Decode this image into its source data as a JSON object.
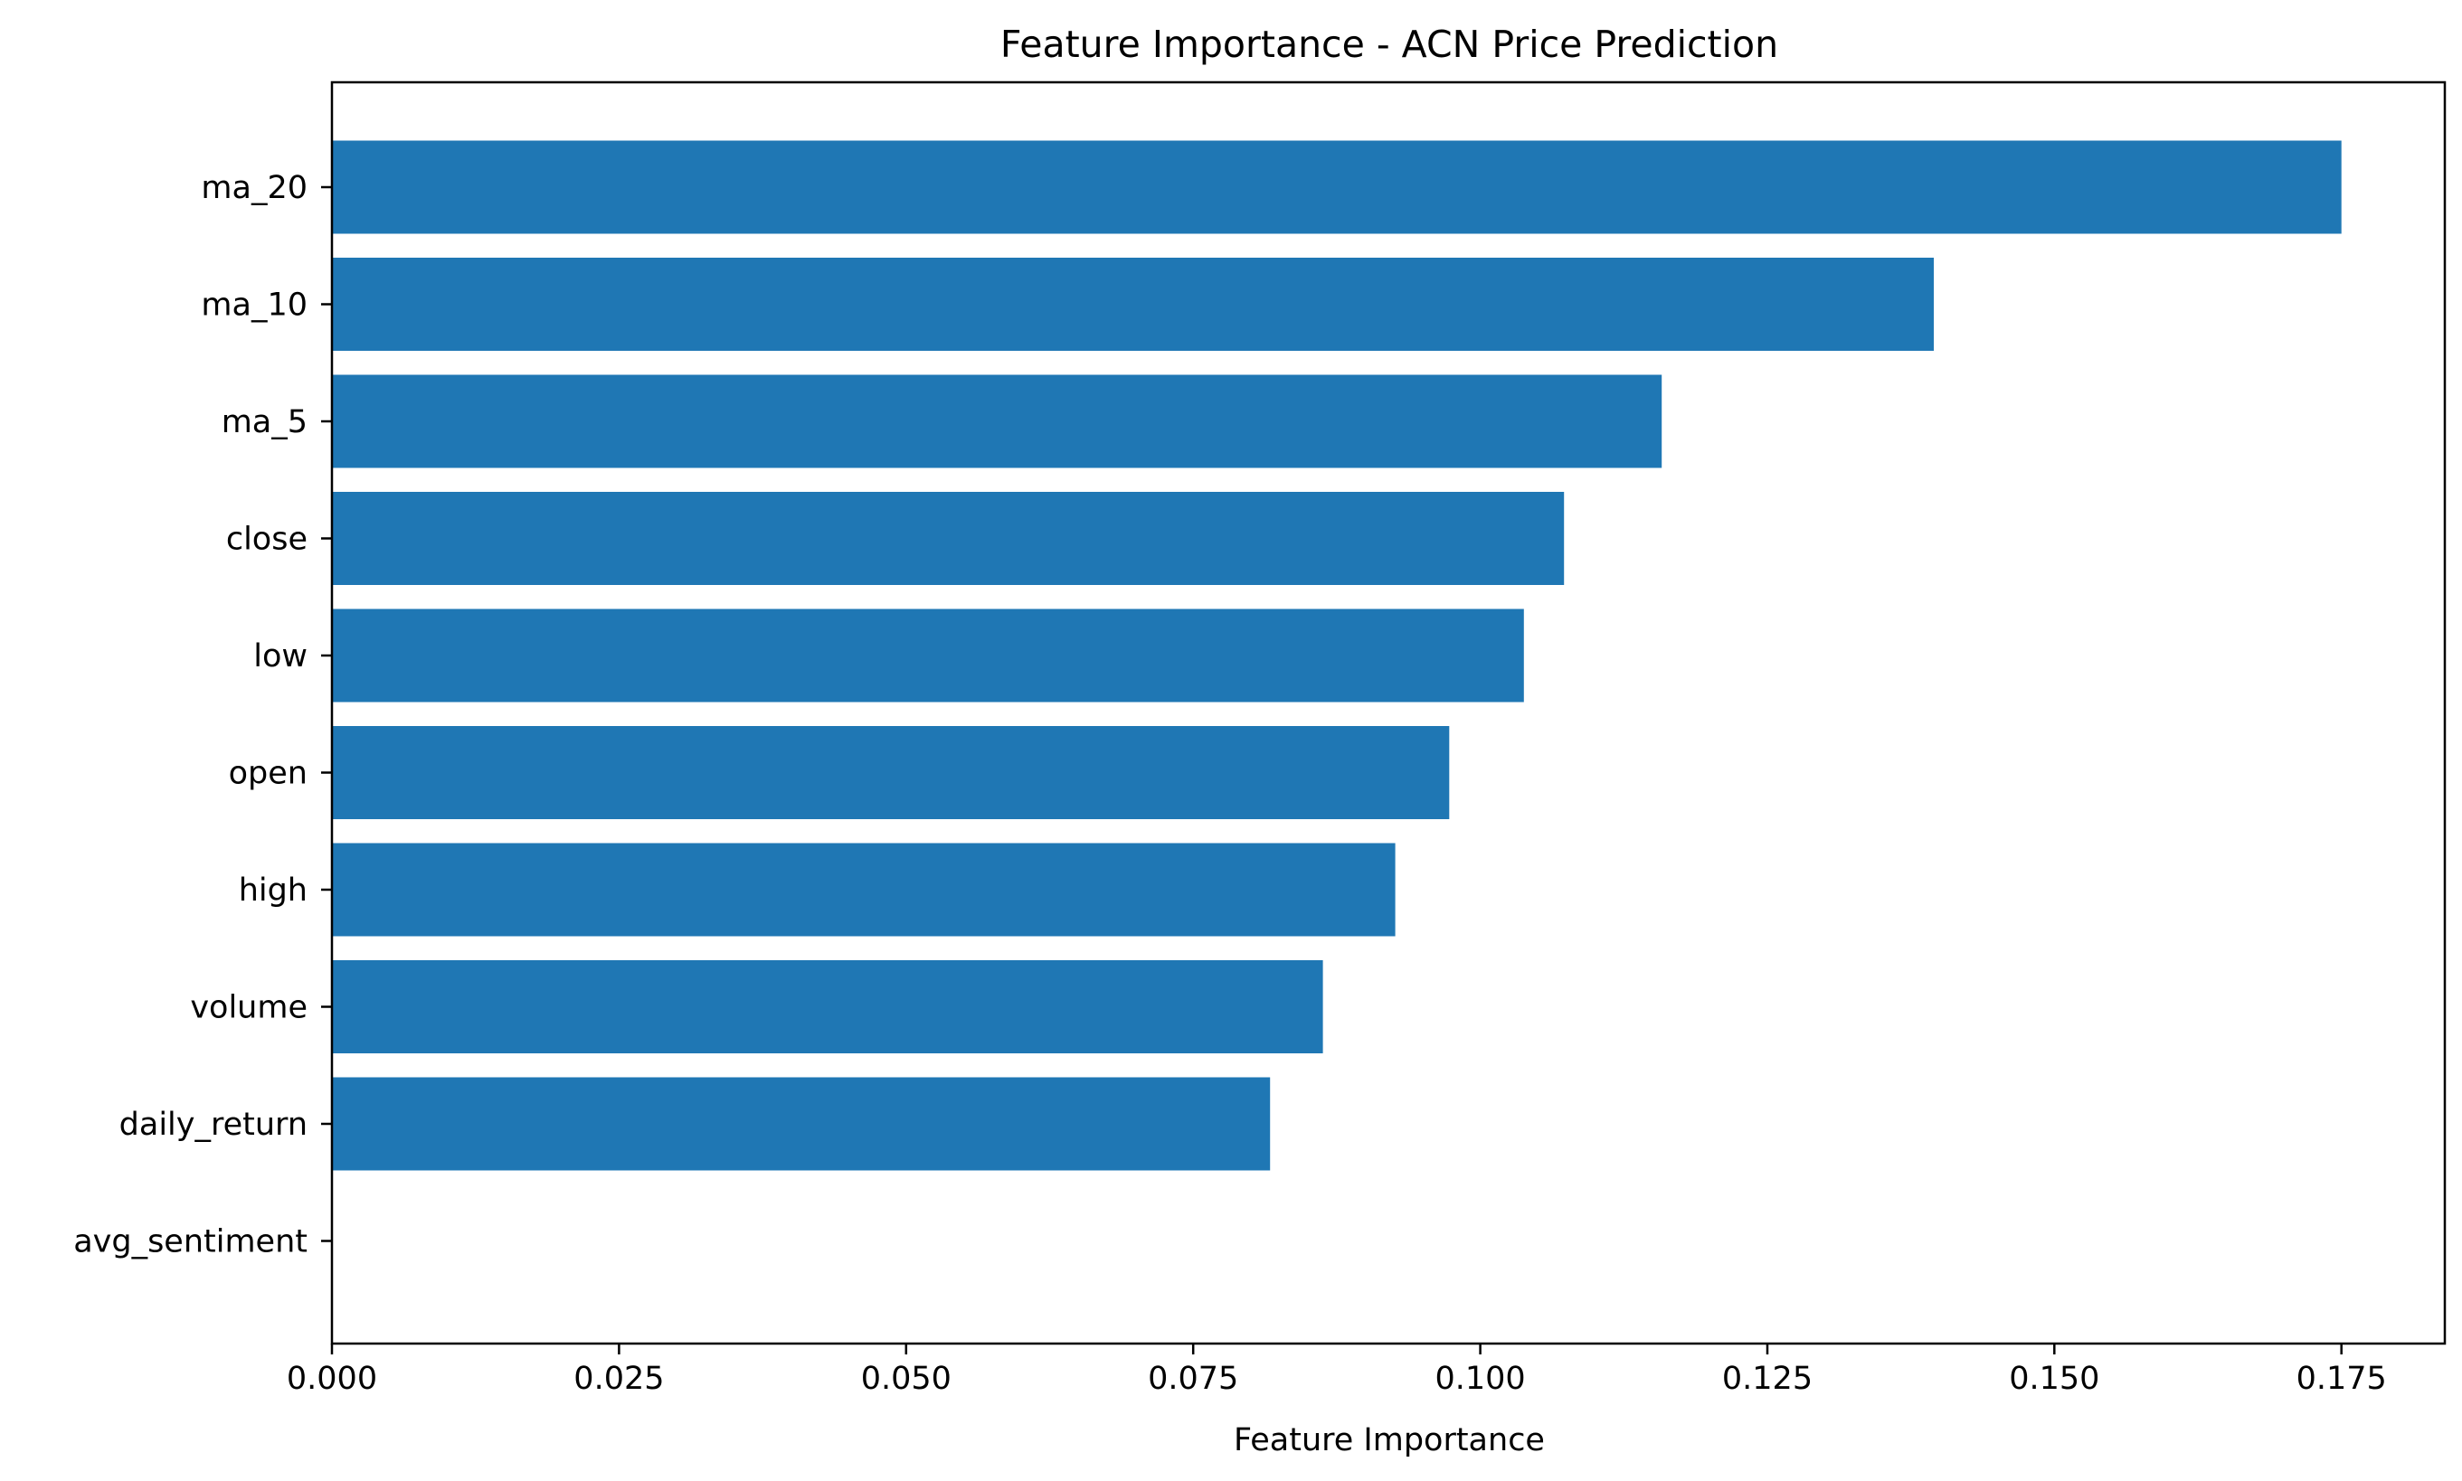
{
  "chart_data": {
    "type": "bar",
    "orientation": "horizontal",
    "title": "Feature Importance - ACN Price Prediction",
    "xlabel": "Feature Importance",
    "ylabel": "",
    "categories": [
      "ma_20",
      "ma_10",
      "ma_5",
      "close",
      "low",
      "open",
      "high",
      "volume",
      "daily_return",
      "avg_sentiment"
    ],
    "values": [
      0.175,
      0.1395,
      0.1158,
      0.1073,
      0.1038,
      0.0973,
      0.0926,
      0.0863,
      0.0817,
      0.0
    ],
    "xlim": [
      0,
      0.184
    ],
    "x_ticks": [
      0.0,
      0.025,
      0.05,
      0.075,
      0.1,
      0.125,
      0.15,
      0.175
    ],
    "x_tick_labels": [
      "0.000",
      "0.025",
      "0.050",
      "0.075",
      "0.100",
      "0.125",
      "0.150",
      "0.175"
    ],
    "grid": false,
    "legend": "none"
  },
  "colors": {
    "bar": "#1f77b4",
    "axis": "#000000",
    "background": "#ffffff"
  }
}
